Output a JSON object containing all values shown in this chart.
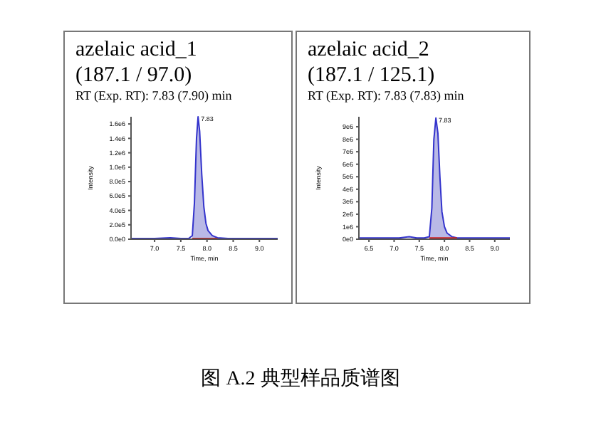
{
  "chart_data": [
    {
      "type": "line",
      "title": "azelaic acid_1",
      "subtitle": "(187.1 / 97.0)",
      "xlabel": "Time, min",
      "ylabel": "Intensity",
      "xlim": [
        6.55,
        9.35
      ],
      "ylim": [
        0,
        1700000
      ],
      "xticks": [
        {
          "value": 7,
          "label": "7.0"
        },
        {
          "value": 7.5,
          "label": "7.5"
        },
        {
          "value": 8,
          "label": "8.0"
        },
        {
          "value": 8.5,
          "label": "8.5"
        },
        {
          "value": 9,
          "label": "9.0"
        }
      ],
      "yticks": [
        {
          "value": 0,
          "label": "0.0e0"
        },
        {
          "value": 200000,
          "label": "2.0e5"
        },
        {
          "value": 400000,
          "label": "4.0e5"
        },
        {
          "value": 600000,
          "label": "6.0e5"
        },
        {
          "value": 800000,
          "label": "8.0e5"
        },
        {
          "value": 1000000,
          "label": "1.0e6"
        },
        {
          "value": 1200000,
          "label": "1.2e6"
        },
        {
          "value": 1400000,
          "label": "1.4e6"
        },
        {
          "value": 1600000,
          "label": "1.6e6"
        }
      ],
      "series": [
        {
          "type": "area",
          "color": "#b9b9e6",
          "x": [
            7.72,
            7.76,
            7.8,
            7.83,
            7.86,
            7.9,
            7.94,
            7.98,
            8.02,
            8.1,
            8.2
          ],
          "values": [
            50000,
            500000,
            1400000,
            1700000,
            1500000,
            900000,
            450000,
            220000,
            120000,
            50000,
            20000
          ]
        },
        {
          "color": "#3333cc",
          "x": [
            6.55,
            7.0,
            7.3,
            7.5,
            7.65,
            7.72,
            7.76,
            7.8,
            7.83,
            7.86,
            7.9,
            7.94,
            7.98,
            8.02,
            8.1,
            8.2,
            8.4,
            9.35
          ],
          "values": [
            10000,
            10000,
            20000,
            10000,
            10000,
            50000,
            500000,
            1400000,
            1700000,
            1500000,
            900000,
            450000,
            220000,
            120000,
            50000,
            20000,
            10000,
            10000
          ]
        },
        {
          "color": "#cc2222",
          "x": [
            7.72,
            8.2
          ],
          "values": [
            10000,
            10000
          ]
        }
      ],
      "annotations": [
        "RT (Exp. RT): 7.83 (7.90) min",
        {
          "text": "7.83",
          "x": 7.83,
          "y": 1700000
        },
        "图 A.2  典型样品质谱图"
      ]
    },
    {
      "type": "line",
      "title": "azelaic acid_2",
      "subtitle": "(187.1 / 125.1)",
      "xlabel": "Time, min",
      "ylabel": "Intensity",
      "xlim": [
        6.3,
        9.3
      ],
      "ylim": [
        0,
        9800000
      ],
      "xticks": [
        {
          "value": 6.5,
          "label": "6.5"
        },
        {
          "value": 7,
          "label": "7.0"
        },
        {
          "value": 7.5,
          "label": "7.5"
        },
        {
          "value": 8,
          "label": "8.0"
        },
        {
          "value": 8.5,
          "label": "8.5"
        },
        {
          "value": 9,
          "label": "9.0"
        }
      ],
      "yticks": [
        {
          "value": 0,
          "label": "0e0"
        },
        {
          "value": 1000000,
          "label": "1e6"
        },
        {
          "value": 2000000,
          "label": "2e6"
        },
        {
          "value": 3000000,
          "label": "3e6"
        },
        {
          "value": 4000000,
          "label": "4e6"
        },
        {
          "value": 5000000,
          "label": "5e6"
        },
        {
          "value": 6000000,
          "label": "6e6"
        },
        {
          "value": 7000000,
          "label": "7e6"
        },
        {
          "value": 8000000,
          "label": "8e6"
        },
        {
          "value": 9000000,
          "label": "9e6"
        }
      ],
      "series": [
        {
          "type": "area",
          "color": "#b9b9e6",
          "x": [
            7.7,
            7.75,
            7.79,
            7.83,
            7.87,
            7.91,
            7.95,
            8.0,
            8.05,
            8.15,
            8.25
          ],
          "values": [
            200000,
            2500000,
            8000000,
            9700000,
            8500000,
            5000000,
            2200000,
            1000000,
            500000,
            200000,
            100000
          ]
        },
        {
          "color": "#3333cc",
          "x": [
            6.3,
            6.8,
            7.1,
            7.3,
            7.45,
            7.6,
            7.7,
            7.75,
            7.79,
            7.83,
            7.87,
            7.91,
            7.95,
            8.0,
            8.05,
            8.15,
            8.25,
            8.5,
            9.3
          ],
          "values": [
            100000,
            100000,
            100000,
            200000,
            100000,
            100000,
            200000,
            2500000,
            8000000,
            9700000,
            8500000,
            5000000,
            2200000,
            1000000,
            500000,
            200000,
            100000,
            100000,
            100000
          ]
        },
        {
          "color": "#cc2222",
          "x": [
            7.7,
            8.25
          ],
          "values": [
            100000,
            100000
          ]
        }
      ],
      "annotations": [
        "RT (Exp. RT): 7.83 (7.83) min",
        {
          "text": "7.83",
          "x": 7.83,
          "y": 9700000
        }
      ]
    }
  ]
}
